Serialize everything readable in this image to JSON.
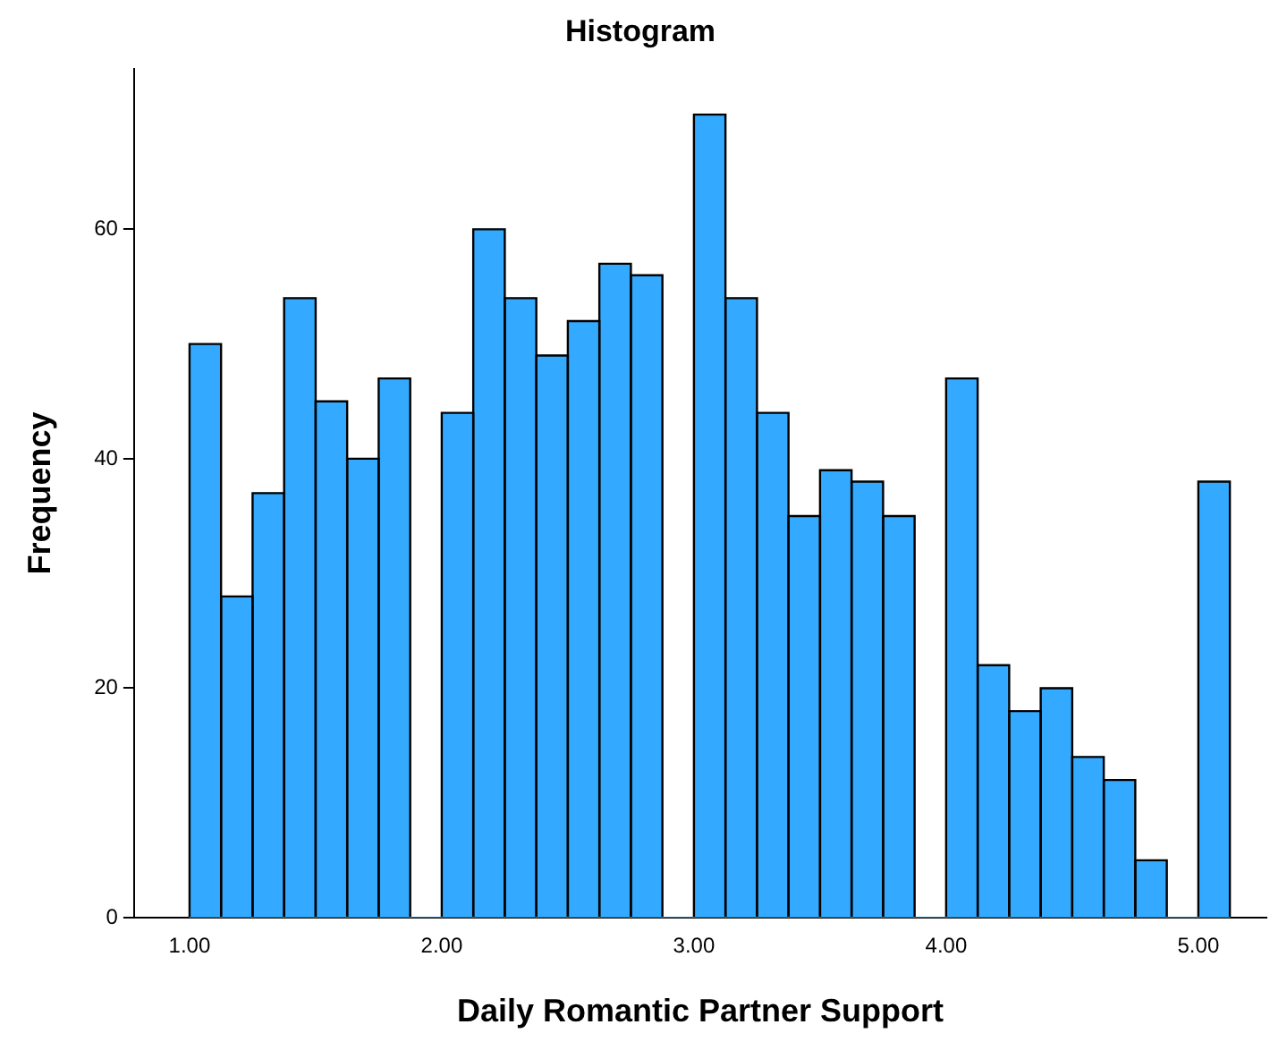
{
  "chart_data": {
    "type": "histogram",
    "title": "Histogram",
    "xlabel": "Daily Romantic Partner Support",
    "ylabel": "Frequency",
    "bins": [
      1.0,
      1.125,
      1.25,
      1.375,
      1.5,
      1.625,
      1.75,
      1.875,
      2.0,
      2.125,
      2.25,
      2.375,
      2.5,
      2.625,
      2.75,
      2.875,
      3.0,
      3.125,
      3.25,
      3.375,
      3.5,
      3.625,
      3.75,
      3.875,
      4.0,
      4.125,
      4.25,
      4.375,
      4.5,
      4.625,
      4.75,
      4.875,
      5.0,
      5.125
    ],
    "values": [
      50,
      28,
      37,
      54,
      45,
      40,
      47,
      0,
      44,
      60,
      54,
      49,
      52,
      57,
      56,
      0,
      70,
      54,
      44,
      35,
      39,
      38,
      35,
      0,
      47,
      22,
      18,
      20,
      14,
      12,
      5,
      0,
      38
    ],
    "color": "#33aaff",
    "xlim": [
      0.78,
      5.27
    ],
    "xticks": [
      {
        "value": 1,
        "label": "1.00"
      },
      {
        "value": 2,
        "label": "2.00"
      },
      {
        "value": 3,
        "label": "3.00"
      },
      {
        "value": 4,
        "label": "4.00"
      },
      {
        "value": 5,
        "label": "5.00"
      }
    ],
    "ylim": [
      0,
      74
    ],
    "yticks": [
      0,
      20,
      40,
      60
    ],
    "grid": false,
    "legend": false
  }
}
